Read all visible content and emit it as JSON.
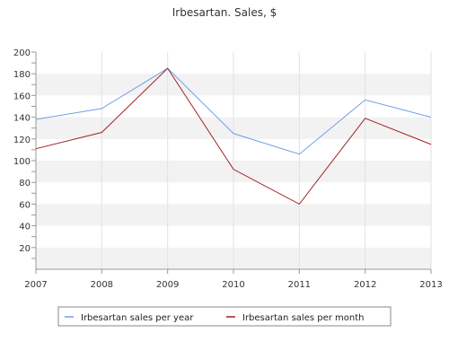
{
  "chart_data": {
    "type": "line",
    "title": "Irbesartan. Sales, $",
    "xlabel": "",
    "ylabel": "",
    "x": [
      "2007",
      "2008",
      "2009",
      "2010",
      "2011",
      "2012",
      "2013"
    ],
    "xlim": [
      2007,
      2013
    ],
    "ylim": [
      0,
      200
    ],
    "y_ticks": [
      20,
      40,
      60,
      80,
      100,
      120,
      140,
      160,
      180,
      200
    ],
    "grid": "horizontal bands and vertical gridlines",
    "legend_position": "bottom",
    "series": [
      {
        "name": "Irbesartan sales per year",
        "color": "#6f9fe6",
        "values": [
          138,
          148,
          185,
          125,
          106,
          156,
          140
        ]
      },
      {
        "name": "Irbesartan sales per month",
        "color": "#a02020",
        "values": [
          111,
          126,
          185,
          92,
          60,
          139,
          115
        ]
      }
    ]
  }
}
